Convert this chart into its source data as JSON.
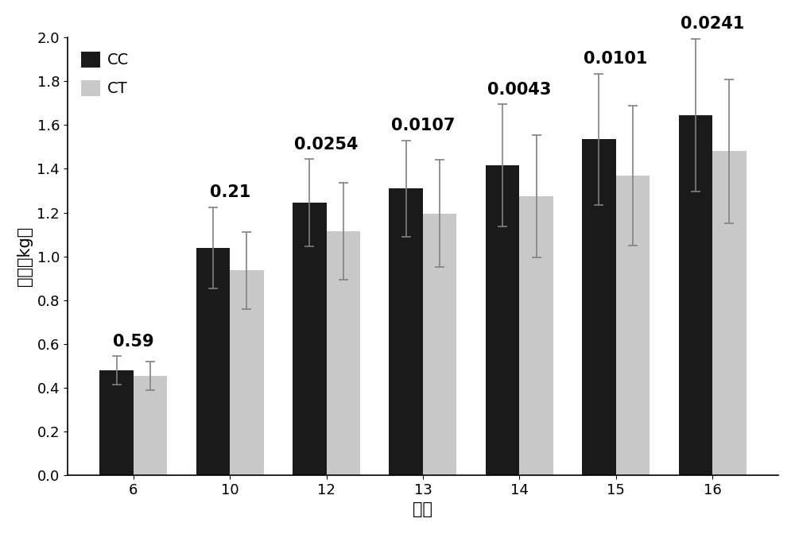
{
  "categories": [
    "6",
    "10",
    "12",
    "13",
    "14",
    "15",
    "16"
  ],
  "cc_values": [
    0.48,
    1.04,
    1.245,
    1.31,
    1.415,
    1.535,
    1.645
  ],
  "ct_values": [
    0.455,
    0.935,
    1.115,
    1.195,
    1.275,
    1.37,
    1.48
  ],
  "cc_errors": [
    0.065,
    0.185,
    0.2,
    0.22,
    0.28,
    0.3,
    0.35
  ],
  "ct_errors": [
    0.065,
    0.175,
    0.22,
    0.245,
    0.28,
    0.32,
    0.33
  ],
  "p_values": [
    "0.59",
    "0.21",
    "0.0254",
    "0.0107",
    "0.0043",
    "0.0101",
    "0.0241"
  ],
  "cc_color": "#1a1a1a",
  "ct_color": "#c8c8c8",
  "ylabel": "体重（kg）",
  "xlabel": "周龄",
  "ylim": [
    0.0,
    2.0
  ],
  "yticks": [
    0.0,
    0.2,
    0.4,
    0.6,
    0.8,
    1.0,
    1.2,
    1.4,
    1.6,
    1.8,
    2.0
  ],
  "legend_cc": "CC",
  "legend_ct": "CT",
  "bar_width": 0.35,
  "p_fontsize": 15,
  "axis_fontsize": 15,
  "tick_fontsize": 13,
  "legend_fontsize": 14
}
